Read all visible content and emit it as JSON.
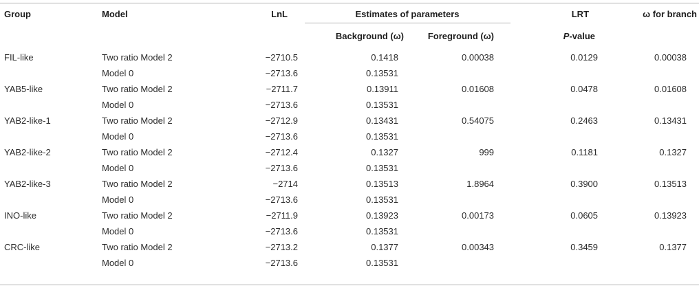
{
  "table": {
    "headers": {
      "group": "Group",
      "model": "Model",
      "lnl": "LnL",
      "estimates": "Estimates of parameters",
      "lrt": "LRT",
      "omega_branch": "ω for branch",
      "background": "Background (ω)",
      "foreground": "Foreground (ω)",
      "p_value_italic": "P",
      "p_value_rest": "-value"
    },
    "rows": [
      {
        "group": "FIL-like",
        "model": "Two ratio Model 2",
        "lnl": "−2710.5",
        "background": "0.1418",
        "foreground": "0.00038",
        "p_value": "0.0129",
        "omega_branch": "0.00038"
      },
      {
        "group": "",
        "model": "Model 0",
        "lnl": "−2713.6",
        "background": "0.13531",
        "foreground": "",
        "p_value": "",
        "omega_branch": ""
      },
      {
        "group": "YAB5-like",
        "model": "Two ratio Model 2",
        "lnl": "−2711.7",
        "background": "0.13911",
        "foreground": "0.01608",
        "p_value": "0.0478",
        "omega_branch": "0.01608"
      },
      {
        "group": "",
        "model": "Model 0",
        "lnl": "−2713.6",
        "background": "0.13531",
        "foreground": "",
        "p_value": "",
        "omega_branch": ""
      },
      {
        "group": "YAB2-like-1",
        "model": "Two ratio Model 2",
        "lnl": "−2712.9",
        "background": "0.13431",
        "foreground": "0.54075",
        "p_value": "0.2463",
        "omega_branch": "0.13431"
      },
      {
        "group": "",
        "model": "Model 0",
        "lnl": "−2713.6",
        "background": "0.13531",
        "foreground": "",
        "p_value": "",
        "omega_branch": ""
      },
      {
        "group": "YAB2-like-2",
        "model": "Two ratio Model 2",
        "lnl": "−2712.4",
        "background": "0.1327",
        "foreground": "999",
        "p_value": "0.1181",
        "omega_branch": "0.1327"
      },
      {
        "group": "",
        "model": "Model 0",
        "lnl": "−2713.6",
        "background": "0.13531",
        "foreground": "",
        "p_value": "",
        "omega_branch": ""
      },
      {
        "group": "YAB2-like-3",
        "model": "Two ratio Model 2",
        "lnl": "−2714",
        "background": "0.13513",
        "foreground": "1.8964",
        "p_value": "0.3900",
        "omega_branch": "0.13513"
      },
      {
        "group": "",
        "model": "Model 0",
        "lnl": "−2713.6",
        "background": "0.13531",
        "foreground": "",
        "p_value": "",
        "omega_branch": ""
      },
      {
        "group": "INO-like",
        "model": "Two ratio Model 2",
        "lnl": "−2711.9",
        "background": "0.13923",
        "foreground": "0.00173",
        "p_value": "0.0605",
        "omega_branch": "0.13923"
      },
      {
        "group": "",
        "model": "Model 0",
        "lnl": "−2713.6",
        "background": "0.13531",
        "foreground": "",
        "p_value": "",
        "omega_branch": ""
      },
      {
        "group": "CRC-like",
        "model": "Two ratio Model 2",
        "lnl": "−2713.2",
        "background": "0.1377",
        "foreground": "0.00343",
        "p_value": "0.3459",
        "omega_branch": "0.1377"
      },
      {
        "group": "",
        "model": "Model 0",
        "lnl": "−2713.6",
        "background": "0.13531",
        "foreground": "",
        "p_value": "",
        "omega_branch": ""
      }
    ]
  }
}
